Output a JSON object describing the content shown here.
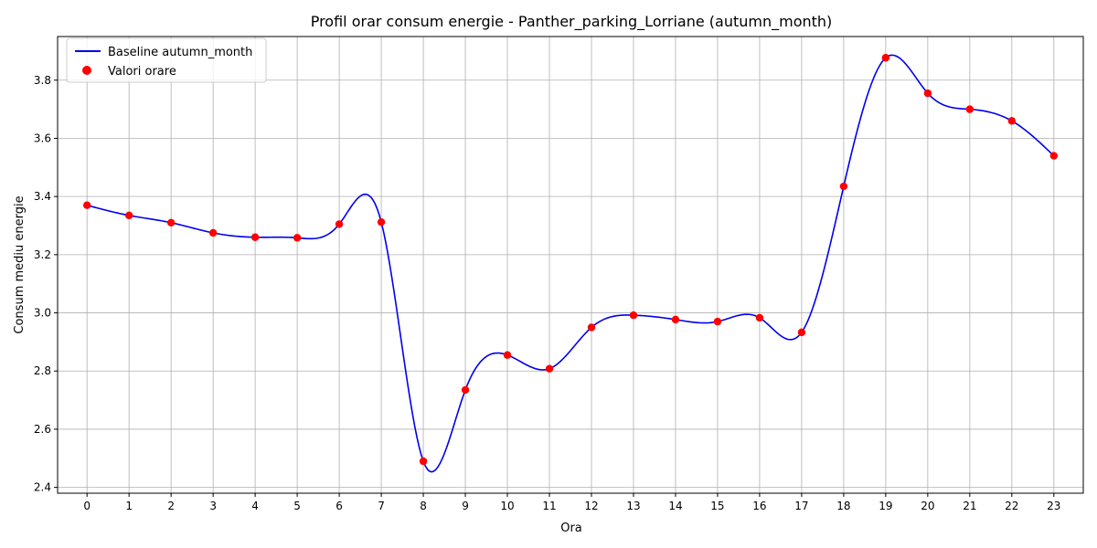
{
  "chart_data": {
    "type": "line",
    "title": "Profil orar consum energie - Panther_parking_Lorriane (autumn_month)",
    "xlabel": "Ora",
    "ylabel": "Consum mediu energie",
    "x": [
      0,
      1,
      2,
      3,
      4,
      5,
      6,
      7,
      8,
      9,
      10,
      11,
      12,
      13,
      14,
      15,
      16,
      17,
      18,
      19,
      20,
      21,
      22,
      23
    ],
    "x_tick_labels": [
      "0",
      "1",
      "2",
      "3",
      "4",
      "5",
      "6",
      "7",
      "8",
      "9",
      "10",
      "11",
      "12",
      "13",
      "14",
      "15",
      "16",
      "17",
      "18",
      "19",
      "20",
      "21",
      "22",
      "23"
    ],
    "y_ticks": [
      2.4,
      2.6,
      2.8,
      3.0,
      3.2,
      3.4,
      3.6,
      3.8
    ],
    "y_tick_labels": [
      "2.4",
      "2.6",
      "2.8",
      "3.0",
      "3.2",
      "3.4",
      "3.6",
      "3.8"
    ],
    "xlim": [
      -0.7,
      23.7
    ],
    "ylim": [
      2.38,
      3.95
    ],
    "grid": true,
    "legend_position": "top-left",
    "series": [
      {
        "name": "Baseline autumn_month",
        "kind": "line",
        "color": "#0000ee",
        "values": [
          3.37,
          3.335,
          3.31,
          3.275,
          3.26,
          3.258,
          3.305,
          3.312,
          2.49,
          2.735,
          2.855,
          2.808,
          2.95,
          2.992,
          2.977,
          2.97,
          2.983,
          2.933,
          3.435,
          3.877,
          3.755,
          3.7,
          3.66,
          3.54
        ]
      },
      {
        "name": "Valori orare",
        "kind": "scatter",
        "color": "#ff0000",
        "values": [
          3.37,
          3.335,
          3.31,
          3.275,
          3.26,
          3.258,
          3.305,
          3.312,
          2.49,
          2.735,
          2.855,
          2.808,
          2.95,
          2.992,
          2.977,
          2.97,
          2.983,
          2.933,
          3.435,
          3.877,
          3.755,
          3.7,
          3.66,
          3.54
        ]
      }
    ]
  }
}
